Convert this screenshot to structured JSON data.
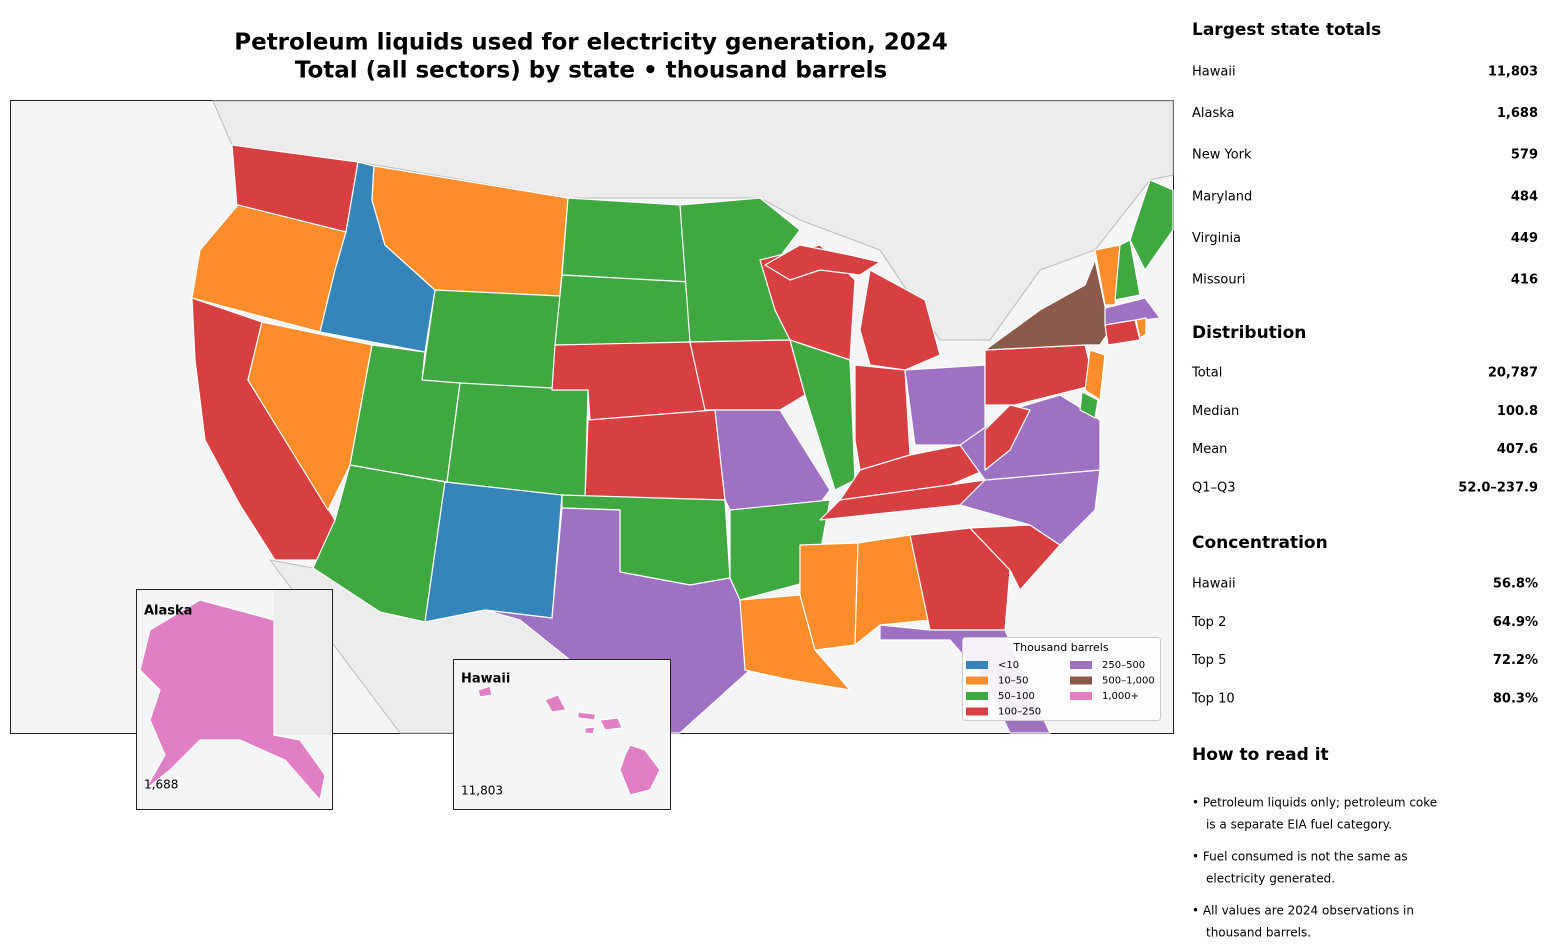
{
  "title": "Petroleum liquids used for electricity generation, 2024",
  "subtitle": "Total (all sectors) by state • thousand barrels",
  "legend": {
    "title": "Thousand barrels",
    "bins": [
      {
        "label": "<10",
        "color": "#3585bb"
      },
      {
        "label": "10–50",
        "color": "#fd8c2a"
      },
      {
        "label": "50–100",
        "color": "#40a840"
      },
      {
        "label": "100–250",
        "color": "#d83f40"
      },
      {
        "label": "250–500",
        "color": "#9e71c2"
      },
      {
        "label": "500–1,000",
        "color": "#8c5a4b"
      },
      {
        "label": "1,000+",
        "color": "#e07fc3"
      }
    ]
  },
  "insets": [
    {
      "title": "Alaska",
      "value": "1,688"
    },
    {
      "title": "Hawaii",
      "value": "11,803"
    }
  ],
  "panel": {
    "sections": [
      {
        "title": "Largest state totals",
        "rows": [
          [
            "Hawaii",
            "11,803"
          ],
          [
            "Alaska",
            "1,688"
          ],
          [
            "New York",
            "579"
          ],
          [
            "Maryland",
            "484"
          ],
          [
            "Virginia",
            "449"
          ],
          [
            "Missouri",
            "416"
          ]
        ]
      },
      {
        "title": "Distribution",
        "rows": [
          [
            "Total",
            "20,787"
          ],
          [
            "Median",
            "100.8"
          ],
          [
            "Mean",
            "407.6"
          ],
          [
            "Q1–Q3",
            "52.0–237.9"
          ]
        ]
      },
      {
        "title": "Concentration",
        "rows": [
          [
            "Hawaii",
            "56.8%"
          ],
          [
            "Top 2",
            "64.9%"
          ],
          [
            "Top 5",
            "72.2%"
          ],
          [
            "Top 10",
            "80.3%"
          ]
        ]
      }
    ],
    "notes": {
      "title": "How to read it",
      "items": [
        [
          "• Petroleum liquids only; petroleum coke",
          "is a separate EIA fuel category."
        ],
        [
          "• Fuel consumed is not the same as",
          "electricity generated."
        ],
        [
          "• All values are 2024 observations in",
          "thousand barrels."
        ]
      ]
    }
  }
}
